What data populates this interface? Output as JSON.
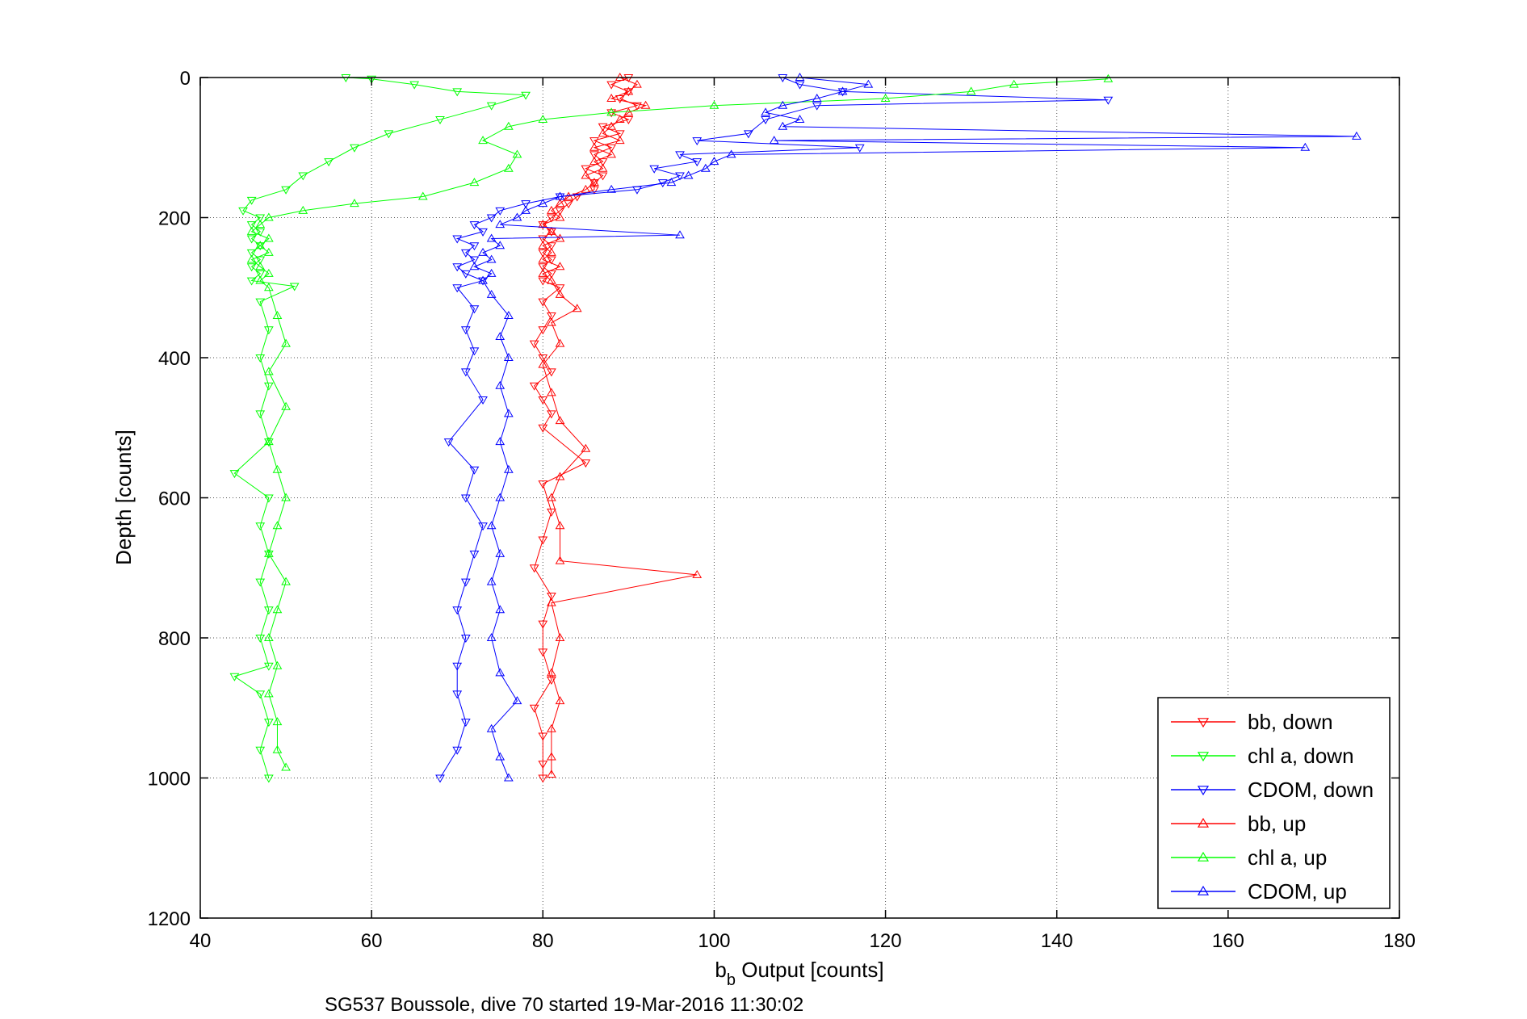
{
  "chart_data": {
    "type": "scatter",
    "xlabel_main": "b",
    "xlabel_sub": "b",
    "xlabel_rest": " Output [counts]",
    "ylabel": "Depth [counts]",
    "caption": "SG537 Boussole, dive 70 started 19-Mar-2016 11:30:02",
    "xlim": [
      40,
      180
    ],
    "ylim": [
      0,
      1200
    ],
    "y_reversed": true,
    "grid": true,
    "xticks": [
      40,
      60,
      80,
      100,
      120,
      140,
      160,
      180
    ],
    "yticks": [
      0,
      200,
      400,
      600,
      800,
      1000,
      1200
    ],
    "xtick_labels": [
      "40",
      "60",
      "80",
      "100",
      "120",
      "140",
      "160",
      "180"
    ],
    "ytick_labels": [
      "0",
      "200",
      "400",
      "600",
      "800",
      "1000",
      "1200"
    ],
    "legend_position": "bottom-right",
    "series": [
      {
        "name": "bb, down",
        "color": "#ff0000",
        "marker": "triangle-down",
        "points": [
          [
            90,
            0
          ],
          [
            88,
            10
          ],
          [
            90,
            20
          ],
          [
            89,
            30
          ],
          [
            91,
            40
          ],
          [
            88,
            50
          ],
          [
            90,
            60
          ],
          [
            87,
            70
          ],
          [
            89,
            80
          ],
          [
            86,
            90
          ],
          [
            88,
            100
          ],
          [
            86,
            110
          ],
          [
            87,
            120
          ],
          [
            85,
            130
          ],
          [
            87,
            140
          ],
          [
            86,
            150
          ],
          [
            86,
            160
          ],
          [
            84,
            170
          ],
          [
            83,
            180
          ],
          [
            82,
            190
          ],
          [
            81,
            200
          ],
          [
            80,
            210
          ],
          [
            81,
            220
          ],
          [
            80,
            230
          ],
          [
            81,
            240
          ],
          [
            80,
            250
          ],
          [
            81,
            260
          ],
          [
            80,
            270
          ],
          [
            81,
            280
          ],
          [
            80,
            290
          ],
          [
            82,
            300
          ],
          [
            80,
            320
          ],
          [
            81,
            340
          ],
          [
            80,
            360
          ],
          [
            79,
            380
          ],
          [
            80,
            400
          ],
          [
            81,
            420
          ],
          [
            79,
            440
          ],
          [
            80,
            460
          ],
          [
            81,
            480
          ],
          [
            80,
            500
          ],
          [
            85,
            550
          ],
          [
            80,
            580
          ],
          [
            81,
            620
          ],
          [
            80,
            660
          ],
          [
            79,
            700
          ],
          [
            81,
            740
          ],
          [
            80,
            780
          ],
          [
            80,
            820
          ],
          [
            81,
            860
          ],
          [
            79,
            900
          ],
          [
            80,
            940
          ],
          [
            80,
            980
          ],
          [
            80,
            1000
          ]
        ]
      },
      {
        "name": "chl a, down",
        "color": "#00ff00",
        "marker": "triangle-down",
        "points": [
          [
            57,
            0
          ],
          [
            60,
            2
          ],
          [
            65,
            10
          ],
          [
            70,
            20
          ],
          [
            78,
            25
          ],
          [
            74,
            40
          ],
          [
            68,
            60
          ],
          [
            62,
            80
          ],
          [
            58,
            100
          ],
          [
            55,
            120
          ],
          [
            52,
            140
          ],
          [
            50,
            160
          ],
          [
            46,
            175
          ],
          [
            45,
            190
          ],
          [
            47,
            200
          ],
          [
            46,
            210
          ],
          [
            47,
            220
          ],
          [
            46,
            230
          ],
          [
            47,
            240
          ],
          [
            46,
            250
          ],
          [
            47,
            260
          ],
          [
            46,
            270
          ],
          [
            47,
            280
          ],
          [
            46,
            290
          ],
          [
            51,
            298
          ],
          [
            47,
            320
          ],
          [
            48,
            360
          ],
          [
            47,
            400
          ],
          [
            48,
            440
          ],
          [
            47,
            480
          ],
          [
            48,
            520
          ],
          [
            44,
            565
          ],
          [
            48,
            600
          ],
          [
            47,
            640
          ],
          [
            48,
            680
          ],
          [
            47,
            720
          ],
          [
            48,
            760
          ],
          [
            47,
            800
          ],
          [
            48,
            840
          ],
          [
            44,
            855
          ],
          [
            47,
            880
          ],
          [
            48,
            920
          ],
          [
            47,
            960
          ],
          [
            48,
            1000
          ]
        ]
      },
      {
        "name": "CDOM, down",
        "color": "#0000ff",
        "marker": "triangle-down",
        "points": [
          [
            108,
            0
          ],
          [
            110,
            10
          ],
          [
            115,
            20
          ],
          [
            146,
            32
          ],
          [
            112,
            40
          ],
          [
            106,
            60
          ],
          [
            104,
            80
          ],
          [
            98,
            90
          ],
          [
            117,
            100
          ],
          [
            96,
            110
          ],
          [
            98,
            120
          ],
          [
            93,
            130
          ],
          [
            96,
            140
          ],
          [
            94,
            150
          ],
          [
            91,
            160
          ],
          [
            82,
            170
          ],
          [
            78,
            180
          ],
          [
            75,
            190
          ],
          [
            74,
            200
          ],
          [
            72,
            210
          ],
          [
            73,
            220
          ],
          [
            70,
            230
          ],
          [
            72,
            240
          ],
          [
            71,
            250
          ],
          [
            72,
            260
          ],
          [
            70,
            270
          ],
          [
            71,
            280
          ],
          [
            73,
            290
          ],
          [
            70,
            300
          ],
          [
            72,
            330
          ],
          [
            71,
            360
          ],
          [
            72,
            390
          ],
          [
            71,
            420
          ],
          [
            73,
            460
          ],
          [
            69,
            520
          ],
          [
            72,
            560
          ],
          [
            71,
            600
          ],
          [
            73,
            640
          ],
          [
            72,
            680
          ],
          [
            71,
            720
          ],
          [
            70,
            760
          ],
          [
            71,
            800
          ],
          [
            70,
            840
          ],
          [
            70,
            880
          ],
          [
            71,
            920
          ],
          [
            70,
            960
          ],
          [
            68,
            1000
          ]
        ]
      },
      {
        "name": "bb, up",
        "color": "#ff0000",
        "marker": "triangle-up",
        "points": [
          [
            89,
            0
          ],
          [
            91,
            10
          ],
          [
            90,
            20
          ],
          [
            88,
            30
          ],
          [
            92,
            40
          ],
          [
            90,
            50
          ],
          [
            89,
            60
          ],
          [
            88,
            70
          ],
          [
            87,
            80
          ],
          [
            89,
            90
          ],
          [
            86,
            100
          ],
          [
            88,
            110
          ],
          [
            86,
            120
          ],
          [
            87,
            130
          ],
          [
            85,
            140
          ],
          [
            86,
            150
          ],
          [
            85,
            160
          ],
          [
            83,
            170
          ],
          [
            82,
            180
          ],
          [
            81,
            190
          ],
          [
            82,
            200
          ],
          [
            80,
            210
          ],
          [
            81,
            220
          ],
          [
            82,
            230
          ],
          [
            80,
            240
          ],
          [
            81,
            250
          ],
          [
            80,
            260
          ],
          [
            82,
            270
          ],
          [
            80,
            280
          ],
          [
            81,
            290
          ],
          [
            82,
            310
          ],
          [
            84,
            330
          ],
          [
            81,
            350
          ],
          [
            82,
            380
          ],
          [
            80,
            410
          ],
          [
            81,
            450
          ],
          [
            82,
            490
          ],
          [
            85,
            530
          ],
          [
            82,
            570
          ],
          [
            81,
            600
          ],
          [
            82,
            640
          ],
          [
            82,
            690
          ],
          [
            98,
            710
          ],
          [
            81,
            750
          ],
          [
            82,
            800
          ],
          [
            81,
            850
          ],
          [
            82,
            890
          ],
          [
            81,
            930
          ],
          [
            81,
            970
          ],
          [
            81,
            995
          ]
        ]
      },
      {
        "name": "chl a, up",
        "color": "#00ff00",
        "marker": "triangle-up",
        "points": [
          [
            146,
            2
          ],
          [
            135,
            10
          ],
          [
            130,
            20
          ],
          [
            120,
            30
          ],
          [
            100,
            40
          ],
          [
            88,
            50
          ],
          [
            80,
            60
          ],
          [
            76,
            70
          ],
          [
            73,
            90
          ],
          [
            77,
            110
          ],
          [
            76,
            130
          ],
          [
            72,
            150
          ],
          [
            66,
            170
          ],
          [
            58,
            180
          ],
          [
            52,
            190
          ],
          [
            48,
            200
          ],
          [
            47,
            210
          ],
          [
            46,
            220
          ],
          [
            48,
            230
          ],
          [
            47,
            240
          ],
          [
            48,
            250
          ],
          [
            46,
            260
          ],
          [
            47,
            270
          ],
          [
            48,
            280
          ],
          [
            47,
            290
          ],
          [
            48,
            300
          ],
          [
            49,
            340
          ],
          [
            50,
            380
          ],
          [
            48,
            420
          ],
          [
            50,
            470
          ],
          [
            48,
            520
          ],
          [
            49,
            560
          ],
          [
            50,
            600
          ],
          [
            49,
            640
          ],
          [
            48,
            680
          ],
          [
            50,
            720
          ],
          [
            49,
            760
          ],
          [
            48,
            800
          ],
          [
            49,
            840
          ],
          [
            48,
            880
          ],
          [
            49,
            920
          ],
          [
            49,
            960
          ],
          [
            50,
            985
          ]
        ]
      },
      {
        "name": "CDOM, up",
        "color": "#0000ff",
        "marker": "triangle-up",
        "points": [
          [
            110,
            0
          ],
          [
            118,
            10
          ],
          [
            115,
            20
          ],
          [
            112,
            30
          ],
          [
            108,
            40
          ],
          [
            106,
            50
          ],
          [
            110,
            60
          ],
          [
            108,
            70
          ],
          [
            175,
            84
          ],
          [
            107,
            90
          ],
          [
            169,
            100
          ],
          [
            102,
            110
          ],
          [
            100,
            120
          ],
          [
            99,
            130
          ],
          [
            97,
            140
          ],
          [
            95,
            150
          ],
          [
            88,
            160
          ],
          [
            82,
            170
          ],
          [
            80,
            180
          ],
          [
            78,
            190
          ],
          [
            77,
            200
          ],
          [
            75,
            210
          ],
          [
            96,
            225
          ],
          [
            74,
            230
          ],
          [
            75,
            240
          ],
          [
            73,
            250
          ],
          [
            74,
            260
          ],
          [
            72,
            270
          ],
          [
            74,
            280
          ],
          [
            73,
            290
          ],
          [
            74,
            310
          ],
          [
            76,
            340
          ],
          [
            75,
            370
          ],
          [
            76,
            400
          ],
          [
            75,
            440
          ],
          [
            76,
            480
          ],
          [
            75,
            520
          ],
          [
            76,
            560
          ],
          [
            75,
            600
          ],
          [
            74,
            640
          ],
          [
            75,
            680
          ],
          [
            74,
            720
          ],
          [
            75,
            760
          ],
          [
            74,
            800
          ],
          [
            75,
            850
          ],
          [
            77,
            890
          ],
          [
            74,
            930
          ],
          [
            75,
            970
          ],
          [
            76,
            1000
          ]
        ]
      }
    ]
  }
}
